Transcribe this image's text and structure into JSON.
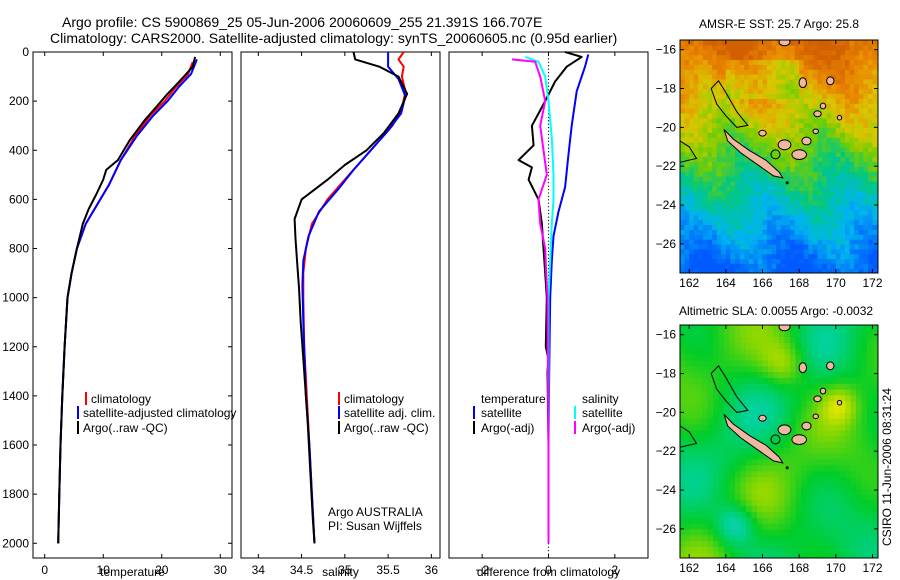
{
  "header": {
    "line1": "Argo profile: CS 5900869_25 05-Jun-2006 20060609_255 21.391S 166.707E",
    "line2": "Climatology: CARS2000. Satellite-adjusted climatology: synTS_20060605.nc (0.95d earlier)"
  },
  "side_label": "CSIRO 11-Jun-2006 08:31:24",
  "colors": {
    "climatology": "#ff0000",
    "satellite": "#0000ff",
    "argo": "#000000",
    "salinity_satellite": "#00ffff",
    "salinity_argo": "#ff00ff",
    "land": "#f0b8a0"
  },
  "chart_data": [
    {
      "type": "line",
      "xlabel": "temperature",
      "ylabel": "",
      "xlim": [
        -2,
        32
      ],
      "ylim": [
        2060,
        0
      ],
      "xticks": [
        0,
        10,
        20,
        30
      ],
      "yticks": [
        0,
        200,
        400,
        600,
        800,
        1000,
        1200,
        1400,
        1600,
        1800,
        2000
      ],
      "legend": [
        "climatology",
        "satellite-adjusted climatology",
        "Argo(..raw -QC)"
      ],
      "series": [
        {
          "name": "climatology",
          "color": "climatology",
          "points": [
            [
              25.3,
              40
            ],
            [
              24.5,
              90
            ],
            [
              22.5,
              140
            ],
            [
              20.5,
              200
            ],
            [
              18.0,
              260
            ],
            [
              15.5,
              340
            ],
            [
              13.0,
              440
            ],
            [
              11.0,
              540
            ],
            [
              9.0,
              620
            ],
            [
              7.0,
              700
            ],
            [
              5.5,
              800
            ],
            [
              4.6,
              900
            ],
            [
              3.9,
              1000
            ],
            [
              3.4,
              1200
            ],
            [
              3.0,
              1400
            ],
            [
              2.7,
              1600
            ],
            [
              2.5,
              1800
            ],
            [
              2.3,
              2000
            ]
          ]
        },
        {
          "name": "satellite-adjusted climatology",
          "color": "satellite",
          "points": [
            [
              26.0,
              30
            ],
            [
              25.0,
              90
            ],
            [
              23.0,
              140
            ],
            [
              21.0,
              200
            ],
            [
              18.5,
              260
            ],
            [
              15.8,
              340
            ],
            [
              13.0,
              440
            ],
            [
              11.0,
              540
            ],
            [
              9.0,
              620
            ],
            [
              7.0,
              700
            ],
            [
              5.5,
              800
            ],
            [
              4.6,
              900
            ],
            [
              3.9,
              1000
            ],
            [
              3.4,
              1200
            ],
            [
              3.0,
              1400
            ],
            [
              2.7,
              1600
            ],
            [
              2.5,
              1800
            ],
            [
              2.3,
              2000
            ]
          ]
        },
        {
          "name": "Argo(..raw -QC)",
          "color": "argo",
          "points": [
            [
              25.7,
              20
            ],
            [
              25.3,
              60
            ],
            [
              23.0,
              120
            ],
            [
              21.0,
              170
            ],
            [
              19.2,
              220
            ],
            [
              17.0,
              280
            ],
            [
              14.5,
              360
            ],
            [
              12.5,
              440
            ],
            [
              10.5,
              480
            ],
            [
              10.0,
              520
            ],
            [
              8.8,
              580
            ],
            [
              7.5,
              640
            ],
            [
              6.5,
              700
            ],
            [
              5.5,
              800
            ],
            [
              4.6,
              900
            ],
            [
              3.9,
              1000
            ],
            [
              3.4,
              1200
            ],
            [
              3.0,
              1400
            ],
            [
              2.7,
              1600
            ],
            [
              2.5,
              1800
            ],
            [
              2.3,
              2000
            ]
          ]
        }
      ]
    },
    {
      "type": "line",
      "xlabel": "salinity",
      "ylabel": "",
      "xlim": [
        33.8,
        36.1
      ],
      "ylim": [
        2060,
        0
      ],
      "xticks": [
        34,
        34.5,
        35,
        35.5,
        36
      ],
      "yticks": [],
      "legend": [
        "climatology",
        "satellite adj. clim.",
        "Argo(..raw -QC)"
      ],
      "annotation": [
        "Argo AUSTRALIA",
        "PI: Susan Wijffels"
      ],
      "series": [
        {
          "name": "climatology",
          "color": "climatology",
          "points": [
            [
              35.68,
              0
            ],
            [
              35.62,
              30
            ],
            [
              35.68,
              60
            ],
            [
              35.66,
              100
            ],
            [
              35.7,
              160
            ],
            [
              35.66,
              230
            ],
            [
              35.55,
              300
            ],
            [
              35.4,
              360
            ],
            [
              35.2,
              440
            ],
            [
              35.0,
              520
            ],
            [
              34.8,
              600
            ],
            [
              34.62,
              700
            ],
            [
              34.55,
              800
            ],
            [
              34.52,
              900
            ],
            [
              34.52,
              1000
            ],
            [
              34.53,
              1200
            ],
            [
              34.56,
              1400
            ],
            [
              34.59,
              1600
            ],
            [
              34.62,
              1800
            ],
            [
              34.65,
              2000
            ]
          ]
        },
        {
          "name": "satellite adj. clim.",
          "color": "satellite",
          "points": [
            [
              35.5,
              0
            ],
            [
              35.5,
              60
            ],
            [
              35.62,
              110
            ],
            [
              35.7,
              180
            ],
            [
              35.65,
              250
            ],
            [
              35.5,
              320
            ],
            [
              35.3,
              400
            ],
            [
              35.1,
              480
            ],
            [
              34.92,
              560
            ],
            [
              34.7,
              650
            ],
            [
              34.58,
              750
            ],
            [
              34.52,
              850
            ],
            [
              34.51,
              950
            ],
            [
              34.52,
              1100
            ],
            [
              34.55,
              1400
            ],
            [
              34.59,
              1600
            ],
            [
              34.62,
              1800
            ],
            [
              34.65,
              2000
            ]
          ]
        },
        {
          "name": "Argo(..raw -QC)",
          "color": "argo",
          "points": [
            [
              35.1,
              0
            ],
            [
              35.12,
              30
            ],
            [
              35.4,
              60
            ],
            [
              35.62,
              100
            ],
            [
              35.72,
              170
            ],
            [
              35.62,
              250
            ],
            [
              35.45,
              330
            ],
            [
              35.25,
              400
            ],
            [
              35.0,
              460
            ],
            [
              34.8,
              520
            ],
            [
              34.5,
              600
            ],
            [
              34.42,
              680
            ],
            [
              34.43,
              760
            ],
            [
              34.45,
              860
            ],
            [
              34.47,
              960
            ],
            [
              34.49,
              1100
            ],
            [
              34.53,
              1300
            ],
            [
              34.57,
              1500
            ],
            [
              34.6,
              1700
            ],
            [
              34.63,
              1900
            ],
            [
              34.65,
              2000
            ]
          ]
        }
      ]
    },
    {
      "type": "line",
      "xlabel": "difference from climatology",
      "ylabel": "",
      "xlim": [
        -3,
        3
      ],
      "ylim": [
        2060,
        0
      ],
      "xticks": [
        -2,
        0,
        2
      ],
      "yticks": [],
      "legend_headers": [
        "temperature",
        "salinity"
      ],
      "legend": [
        "satellite",
        "Argo(-adj)",
        "satellite",
        "Argo(-adj)"
      ],
      "series": [
        {
          "name": "satellite",
          "color": "satellite",
          "points": [
            [
              1.2,
              10
            ],
            [
              1.1,
              60
            ],
            [
              0.85,
              160
            ],
            [
              0.7,
              300
            ],
            [
              0.6,
              420
            ],
            [
              0.5,
              550
            ],
            [
              0.3,
              650
            ],
            [
              0.15,
              750
            ],
            [
              0.1,
              850
            ],
            [
              0.05,
              1000
            ],
            [
              0.02,
              1300
            ],
            [
              0.0,
              1600
            ],
            [
              0.0,
              2000
            ]
          ]
        },
        {
          "name": "Argo(-adj)",
          "color": "argo",
          "points": [
            [
              0.5,
              0
            ],
            [
              1.0,
              20
            ],
            [
              0.55,
              60
            ],
            [
              0.2,
              120
            ],
            [
              -0.1,
              200
            ],
            [
              -0.5,
              300
            ],
            [
              -0.45,
              380
            ],
            [
              -0.9,
              440
            ],
            [
              -0.5,
              470
            ],
            [
              -0.6,
              520
            ],
            [
              -0.3,
              600
            ],
            [
              -0.2,
              700
            ],
            [
              -0.15,
              800
            ],
            [
              -0.1,
              900
            ],
            [
              -0.05,
              1000
            ],
            [
              -0.08,
              1200
            ],
            [
              0.0,
              1250
            ],
            [
              -0.03,
              1300
            ],
            [
              0.0,
              1600
            ],
            [
              0.0,
              2000
            ]
          ]
        },
        {
          "name": "satellite",
          "color": "salinity_satellite",
          "points": [
            [
              -0.7,
              20
            ],
            [
              -0.3,
              40
            ],
            [
              -0.1,
              100
            ],
            [
              0.0,
              200
            ],
            [
              0.1,
              350
            ],
            [
              0.15,
              500
            ],
            [
              0.15,
              600
            ],
            [
              0.1,
              700
            ],
            [
              0.05,
              850
            ],
            [
              0.0,
              1000
            ],
            [
              0.0,
              1500
            ],
            [
              0.0,
              2000
            ]
          ]
        },
        {
          "name": "Argo(-adj)",
          "color": "salinity_argo",
          "points": [
            [
              -1.1,
              30
            ],
            [
              -0.4,
              40
            ],
            [
              -0.25,
              100
            ],
            [
              -0.1,
              200
            ],
            [
              -0.25,
              300
            ],
            [
              -0.15,
              400
            ],
            [
              -0.05,
              500
            ],
            [
              -0.3,
              600
            ],
            [
              -0.25,
              700
            ],
            [
              -0.1,
              800
            ],
            [
              -0.07,
              900
            ],
            [
              -0.03,
              1000
            ],
            [
              -0.02,
              1200
            ],
            [
              0.0,
              1600
            ],
            [
              0.0,
              2000
            ]
          ]
        }
      ]
    },
    {
      "type": "heatmap",
      "title": "AMSR-E SST: 25.7 Argo: 25.8",
      "xlim": [
        161.5,
        172.3
      ],
      "ylim": [
        -27.5,
        -15.5
      ],
      "xticks": [
        162,
        164,
        166,
        168,
        170,
        172
      ],
      "yticks": [
        -16,
        -18,
        -20,
        -22,
        -24,
        -26
      ],
      "float_position": [
        166.707,
        -21.391
      ]
    },
    {
      "type": "heatmap",
      "title": "Altimetric SLA: 0.0055 Argo: -0.0032",
      "xlim": [
        161.5,
        172.3
      ],
      "ylim": [
        -27.5,
        -15.5
      ],
      "xticks": [
        162,
        164,
        166,
        168,
        170,
        172
      ],
      "yticks": [
        -16,
        -18,
        -20,
        -22,
        -24,
        -26
      ],
      "float_position": [
        166.707,
        -21.391
      ]
    }
  ]
}
